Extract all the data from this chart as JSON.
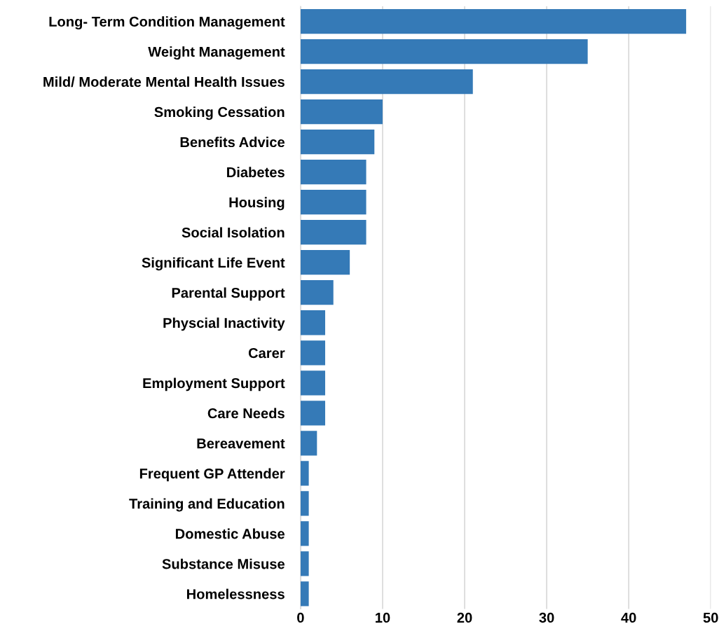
{
  "chart_data": {
    "type": "bar",
    "orientation": "horizontal",
    "categories": [
      "Long- Term Condition Management",
      "Weight Management",
      "Mild/ Moderate Mental Health Issues",
      "Smoking Cessation",
      "Benefits Advice",
      "Diabetes",
      "Housing",
      "Social Isolation",
      "Significant Life Event",
      "Parental Support",
      "Physcial Inactivity",
      "Carer",
      "Employment Support",
      "Care Needs",
      "Bereavement",
      "Frequent GP Attender",
      "Training and Education",
      "Domestic Abuse",
      "Substance Misuse",
      "Homelessness"
    ],
    "values": [
      47,
      35,
      21,
      10,
      9,
      8,
      8,
      8,
      6,
      4,
      3,
      3,
      3,
      3,
      2,
      1,
      1,
      1,
      1,
      1
    ],
    "color": "#357ab7",
    "xlim": [
      0,
      50
    ],
    "xticks": [
      0,
      10,
      20,
      30,
      40,
      50
    ],
    "grid": "x"
  }
}
